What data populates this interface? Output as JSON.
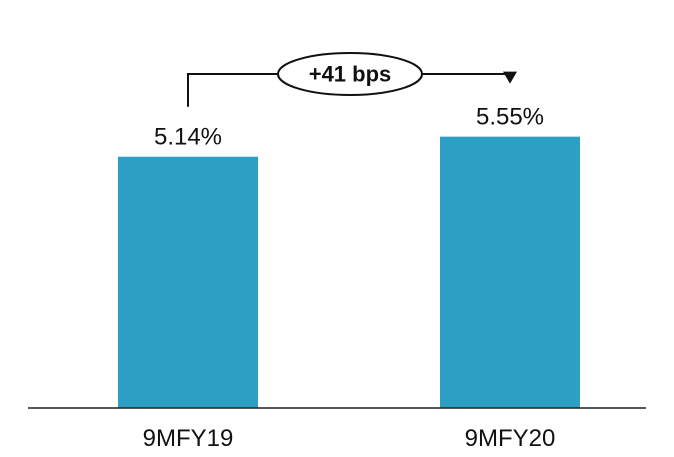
{
  "chart_data": {
    "type": "bar",
    "title": "",
    "xlabel": "",
    "ylabel": "",
    "categories": [
      "9MFY19",
      "9MFY20"
    ],
    "values": [
      5.14,
      5.55
    ],
    "value_labels": [
      "5.14%",
      "5.55%"
    ],
    "ylim": [
      0,
      6.3
    ],
    "grid": false,
    "bar_color": "#2E9FC4",
    "annotation": {
      "text": "+41 bps",
      "from_category": "9MFY19",
      "to_category": "9MFY20"
    }
  }
}
